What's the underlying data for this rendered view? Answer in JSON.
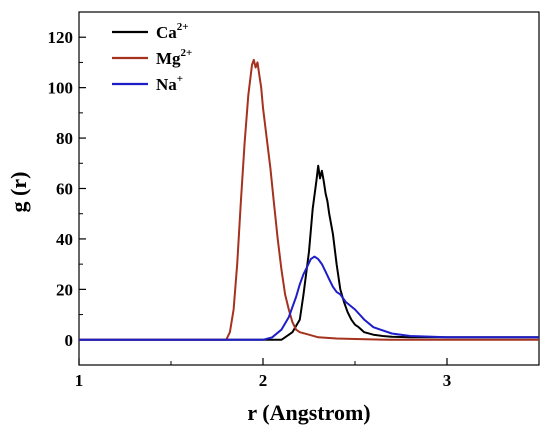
{
  "chart_data": {
    "type": "line",
    "title": "",
    "xlabel": "r (Angstrom)",
    "ylabel": "g (r)",
    "xlim": [
      1,
      3.5
    ],
    "ylim": [
      -10,
      130
    ],
    "x_ticks": [
      1,
      2,
      3
    ],
    "y_ticks": [
      0,
      20,
      40,
      60,
      80,
      100,
      120
    ],
    "x_tick_labels": [
      "1",
      "2",
      "3"
    ],
    "y_tick_labels": [
      "0",
      "20",
      "40",
      "60",
      "80",
      "100",
      "120"
    ],
    "grid": false,
    "legend": {
      "position": "top-left",
      "entries": [
        {
          "base": "Ca",
          "sup": "2+",
          "color": "#000000"
        },
        {
          "base": "Mg",
          "sup": "2+",
          "color": "#a4321e"
        },
        {
          "base": "Na",
          "sup": "+",
          "color": "#1e1ec8"
        }
      ]
    },
    "series": [
      {
        "color": "#000000",
        "x": [
          1.0,
          2.0,
          2.1,
          2.12,
          2.16,
          2.2,
          2.22,
          2.25,
          2.27,
          2.29,
          2.3,
          2.31,
          2.32,
          2.33,
          2.34,
          2.35,
          2.36,
          2.38,
          2.4,
          2.42,
          2.44,
          2.46,
          2.48,
          2.5,
          2.52,
          2.55,
          2.6,
          2.65,
          2.7,
          2.8,
          3.0,
          3.2,
          3.5
        ],
        "y": [
          0,
          0,
          0,
          1,
          3,
          8,
          18,
          35,
          52,
          63,
          69,
          64,
          67,
          63,
          58,
          55,
          50,
          42,
          30,
          20,
          15,
          11,
          8,
          6,
          5,
          3,
          2,
          1.5,
          1.2,
          1,
          1,
          1,
          1
        ]
      },
      {
        "color": "#a4321e",
        "x": [
          1.0,
          1.8,
          1.82,
          1.84,
          1.86,
          1.88,
          1.9,
          1.92,
          1.94,
          1.95,
          1.96,
          1.97,
          1.98,
          1.99,
          2.0,
          2.02,
          2.04,
          2.06,
          2.08,
          2.1,
          2.12,
          2.14,
          2.16,
          2.18,
          2.2,
          2.25,
          2.3,
          2.4,
          2.5,
          2.7,
          3.0,
          3.5
        ],
        "y": [
          0,
          0,
          3,
          12,
          30,
          55,
          78,
          97,
          109,
          111,
          108,
          110,
          105,
          100,
          92,
          80,
          68,
          54,
          40,
          28,
          18,
          12,
          7,
          4,
          3,
          2,
          1,
          0.5,
          0.3,
          0,
          0,
          0
        ]
      },
      {
        "color": "#1e1ec8",
        "x": [
          1.0,
          2.0,
          2.05,
          2.1,
          2.14,
          2.18,
          2.2,
          2.22,
          2.24,
          2.26,
          2.28,
          2.3,
          2.32,
          2.34,
          2.36,
          2.38,
          2.4,
          2.42,
          2.45,
          2.5,
          2.55,
          2.6,
          2.7,
          2.8,
          3.0,
          3.2,
          3.5
        ],
        "y": [
          0,
          0,
          1,
          4,
          9,
          17,
          22,
          26,
          29,
          32,
          33,
          32,
          30,
          27,
          24,
          21,
          19,
          18,
          15,
          12,
          8,
          5,
          2.5,
          1.5,
          1,
          1,
          1
        ]
      }
    ]
  }
}
